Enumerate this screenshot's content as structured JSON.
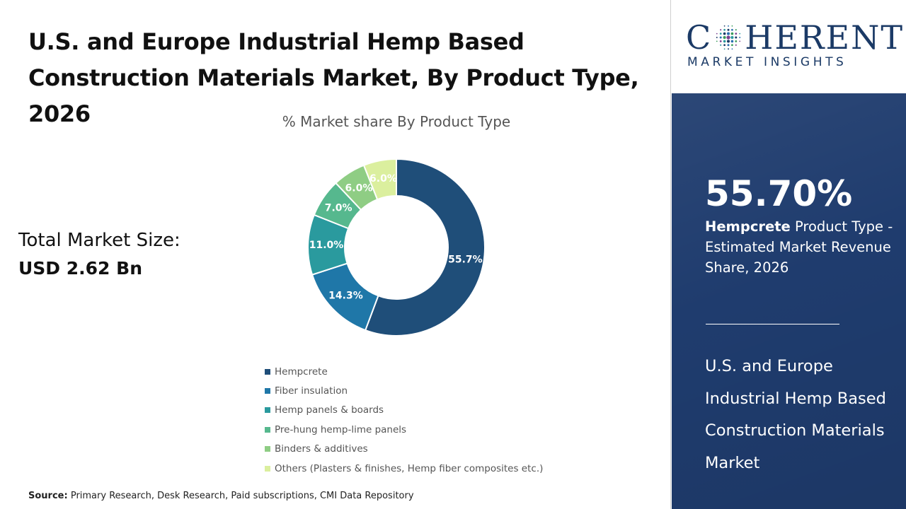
{
  "title": "U.S. and Europe Industrial Hemp Based Construction Materials Market, By Product Type, 2026",
  "chart_subtitle": "% Market share By Product Type",
  "market_size": {
    "label": "Total Market Size:",
    "value": "USD 2.62 Bn"
  },
  "source": {
    "label": "Source:",
    "text": "Primary Research, Desk Research, Paid subscriptions, CMI Data Repository"
  },
  "logo": {
    "word_left": "C",
    "word_right": "HERENT",
    "tagline": "MARKET INSIGHTS",
    "icon": "dotted-globe-icon"
  },
  "highlight": {
    "value": "55.70%",
    "segment_name": "Hempcrete",
    "description": " Product Type - Estimated Market Revenue Share, 2026",
    "market_name": "U.S. and Europe Industrial Hemp Based Construction Materials Market"
  },
  "colors": {
    "brand_navy": "#1f3c6e"
  },
  "chart_data": {
    "type": "pie",
    "subtype": "donut",
    "title": "% Market share By Product Type",
    "categories": [
      "Hempcrete",
      "Fiber insulation",
      "Hemp panels & boards",
      "Pre-hung hemp-lime panels",
      "Binders & additives",
      "Others (Plasters & finishes, Hemp fiber composites etc.)"
    ],
    "values": [
      55.7,
      14.3,
      11.0,
      7.0,
      6.0,
      6.0
    ],
    "data_labels": [
      "55.7%",
      "14.3%",
      "11.0%",
      "7.0%",
      "6.0%",
      "6.0%"
    ],
    "colors": [
      "#1f4e79",
      "#1f77a8",
      "#2a9a9e",
      "#56b88e",
      "#8fcd84",
      "#dbef9e"
    ],
    "legend_position": "bottom"
  }
}
